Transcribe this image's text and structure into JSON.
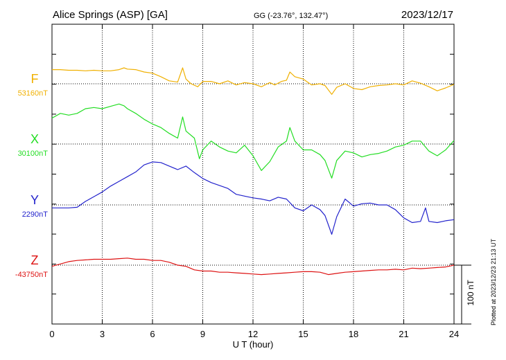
{
  "header": {
    "station": "Alice Springs (ASP)  [GA]",
    "coords": "GG (-23.76°, 132.47°)",
    "date": "2023/12/17"
  },
  "side_note": "Plotted at 2023/12/23 21:13 UT",
  "chart_data": {
    "type": "line",
    "xlabel": "U T (hour)",
    "xlim": [
      0,
      24
    ],
    "xticks": [
      "0",
      "3",
      "6",
      "9",
      "12",
      "15",
      "18",
      "21",
      "24"
    ],
    "grid": true,
    "scale_bar": {
      "label": "100 nT",
      "nT": 100
    },
    "series": [
      {
        "name": "F",
        "baseline_label": "53160nT",
        "baseline_nT": 53160,
        "color": "#f0b000",
        "values_offset_nT": [
          [
            0,
            24
          ],
          [
            0.5,
            24
          ],
          [
            1,
            23
          ],
          [
            1.5,
            23
          ],
          [
            2,
            22
          ],
          [
            2.5,
            23
          ],
          [
            3,
            22
          ],
          [
            3.5,
            22
          ],
          [
            4,
            24
          ],
          [
            4.3,
            27
          ],
          [
            4.5,
            25
          ],
          [
            5,
            24
          ],
          [
            5.5,
            20
          ],
          [
            6,
            18
          ],
          [
            6.5,
            12
          ],
          [
            7,
            5
          ],
          [
            7.5,
            3
          ],
          [
            7.8,
            27
          ],
          [
            8,
            8
          ],
          [
            8.3,
            0
          ],
          [
            8.7,
            -5
          ],
          [
            9,
            4
          ],
          [
            9.5,
            4
          ],
          [
            10,
            0
          ],
          [
            10.5,
            5
          ],
          [
            11,
            -2
          ],
          [
            11.5,
            2
          ],
          [
            12,
            0
          ],
          [
            12.5,
            -5
          ],
          [
            13,
            2
          ],
          [
            13.3,
            -2
          ],
          [
            13.7,
            4
          ],
          [
            14,
            6
          ],
          [
            14.2,
            20
          ],
          [
            14.5,
            12
          ],
          [
            15,
            8
          ],
          [
            15.5,
            -2
          ],
          [
            16,
            0
          ],
          [
            16.3,
            -3
          ],
          [
            16.7,
            -18
          ],
          [
            17,
            -6
          ],
          [
            17.5,
            0
          ],
          [
            18,
            -8
          ],
          [
            18.5,
            -10
          ],
          [
            19,
            -5
          ],
          [
            19.5,
            -3
          ],
          [
            20,
            -2
          ],
          [
            20.5,
            0
          ],
          [
            21,
            -2
          ],
          [
            21.5,
            5
          ],
          [
            22,
            1
          ],
          [
            22.5,
            -5
          ],
          [
            23,
            -12
          ],
          [
            23.5,
            -7
          ],
          [
            24,
            -1
          ]
        ]
      },
      {
        "name": "X",
        "baseline_label": "30100nT",
        "baseline_nT": 30100,
        "color": "#22dd22",
        "values_offset_nT": [
          [
            0,
            44
          ],
          [
            0.5,
            52
          ],
          [
            1,
            49
          ],
          [
            1.5,
            52
          ],
          [
            2,
            60
          ],
          [
            2.5,
            62
          ],
          [
            3,
            60
          ],
          [
            3.5,
            64
          ],
          [
            4,
            68
          ],
          [
            4.3,
            65
          ],
          [
            4.5,
            60
          ],
          [
            5,
            52
          ],
          [
            5.5,
            42
          ],
          [
            6,
            34
          ],
          [
            6.5,
            28
          ],
          [
            7,
            18
          ],
          [
            7.5,
            10
          ],
          [
            7.8,
            46
          ],
          [
            8,
            22
          ],
          [
            8.5,
            10
          ],
          [
            8.8,
            -25
          ],
          [
            9,
            -10
          ],
          [
            9.5,
            5
          ],
          [
            10,
            -5
          ],
          [
            10.5,
            -12
          ],
          [
            11,
            -15
          ],
          [
            11.5,
            -2
          ],
          [
            12,
            -20
          ],
          [
            12.5,
            -45
          ],
          [
            13,
            -30
          ],
          [
            13.5,
            -5
          ],
          [
            14,
            5
          ],
          [
            14.2,
            28
          ],
          [
            14.5,
            5
          ],
          [
            15,
            -10
          ],
          [
            15.5,
            -10
          ],
          [
            16,
            -18
          ],
          [
            16.3,
            -28
          ],
          [
            16.7,
            -58
          ],
          [
            17,
            -28
          ],
          [
            17.5,
            -12
          ],
          [
            18,
            -15
          ],
          [
            18.5,
            -22
          ],
          [
            19,
            -18
          ],
          [
            19.5,
            -16
          ],
          [
            20,
            -12
          ],
          [
            20.5,
            -5
          ],
          [
            21,
            -2
          ],
          [
            21.5,
            5
          ],
          [
            22,
            5
          ],
          [
            22.5,
            -12
          ],
          [
            23,
            -20
          ],
          [
            23.5,
            -10
          ],
          [
            24,
            6
          ]
        ]
      },
      {
        "name": "Y",
        "baseline_label": "2290nT",
        "baseline_nT": 2290,
        "color": "#2222cc",
        "values_offset_nT": [
          [
            0,
            -5
          ],
          [
            0.5,
            -5
          ],
          [
            1,
            -5
          ],
          [
            1.5,
            -4
          ],
          [
            2,
            6
          ],
          [
            2.5,
            14
          ],
          [
            3,
            22
          ],
          [
            3.5,
            32
          ],
          [
            4,
            40
          ],
          [
            4.5,
            48
          ],
          [
            5,
            56
          ],
          [
            5.5,
            68
          ],
          [
            6,
            73
          ],
          [
            6.5,
            72
          ],
          [
            7,
            66
          ],
          [
            7.5,
            60
          ],
          [
            8,
            66
          ],
          [
            8.5,
            55
          ],
          [
            9,
            45
          ],
          [
            9.5,
            38
          ],
          [
            10,
            33
          ],
          [
            10.5,
            28
          ],
          [
            11,
            18
          ],
          [
            11.5,
            15
          ],
          [
            12,
            12
          ],
          [
            12.5,
            10
          ],
          [
            13,
            7
          ],
          [
            13.5,
            13
          ],
          [
            14,
            10
          ],
          [
            14.5,
            -5
          ],
          [
            15,
            -10
          ],
          [
            15.5,
            0
          ],
          [
            16,
            -8
          ],
          [
            16.3,
            -18
          ],
          [
            16.7,
            -50
          ],
          [
            17,
            -20
          ],
          [
            17.5,
            10
          ],
          [
            18,
            -2
          ],
          [
            18.5,
            2
          ],
          [
            19,
            3
          ],
          [
            19.5,
            0
          ],
          [
            20,
            0
          ],
          [
            20.5,
            -8
          ],
          [
            21,
            -22
          ],
          [
            21.5,
            -30
          ],
          [
            22,
            -28
          ],
          [
            22.3,
            -5
          ],
          [
            22.5,
            -28
          ],
          [
            23,
            -30
          ],
          [
            23.5,
            -27
          ],
          [
            24,
            -25
          ]
        ]
      },
      {
        "name": "Z",
        "baseline_label": "-43750nT",
        "baseline_nT": -43750,
        "color": "#dd1111",
        "values_offset_nT": [
          [
            0,
            -2
          ],
          [
            0.5,
            2
          ],
          [
            1,
            6
          ],
          [
            1.5,
            8
          ],
          [
            2,
            9
          ],
          [
            2.5,
            10
          ],
          [
            3,
            10
          ],
          [
            3.5,
            10
          ],
          [
            4,
            11
          ],
          [
            4.5,
            12
          ],
          [
            5,
            10
          ],
          [
            5.5,
            10
          ],
          [
            6,
            8
          ],
          [
            6.5,
            8
          ],
          [
            7,
            5
          ],
          [
            7.5,
            0
          ],
          [
            8,
            -2
          ],
          [
            8.5,
            -8
          ],
          [
            9,
            -10
          ],
          [
            9.5,
            -10
          ],
          [
            10,
            -12
          ],
          [
            10.5,
            -12
          ],
          [
            11,
            -13
          ],
          [
            11.5,
            -14
          ],
          [
            12,
            -15
          ],
          [
            12.5,
            -16
          ],
          [
            13,
            -15
          ],
          [
            13.5,
            -14
          ],
          [
            14,
            -13
          ],
          [
            14.5,
            -12
          ],
          [
            15,
            -11
          ],
          [
            15.5,
            -11
          ],
          [
            16,
            -12
          ],
          [
            16.5,
            -16
          ],
          [
            17,
            -14
          ],
          [
            17.5,
            -12
          ],
          [
            18,
            -11
          ],
          [
            18.5,
            -10
          ],
          [
            19,
            -9
          ],
          [
            19.5,
            -8
          ],
          [
            20,
            -8
          ],
          [
            20.5,
            -7
          ],
          [
            21,
            -8
          ],
          [
            21.5,
            -5
          ],
          [
            22,
            -6
          ],
          [
            22.5,
            -5
          ],
          [
            23,
            -4
          ],
          [
            23.5,
            -3
          ],
          [
            24,
            0
          ]
        ]
      }
    ]
  }
}
